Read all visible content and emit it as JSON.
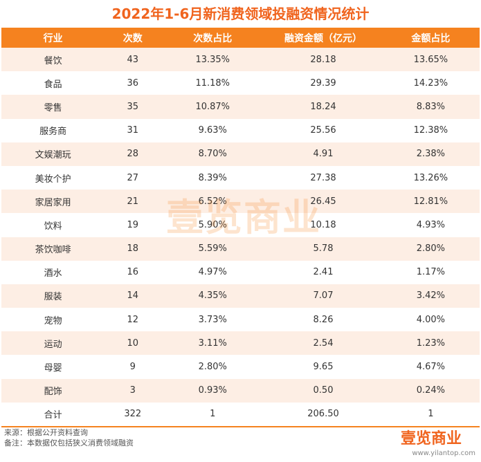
{
  "title": "2022年1-6月新消费领域投融资情况统计",
  "table": {
    "header": [
      "行业",
      "次数",
      "次数占比",
      "融资金额（亿元）",
      "金额占比"
    ],
    "rows": [
      [
        "餐饮",
        "43",
        "13.35%",
        "28.18",
        "13.65%"
      ],
      [
        "食品",
        "36",
        "11.18%",
        "29.39",
        "14.23%"
      ],
      [
        "零售",
        "35",
        "10.87%",
        "18.24",
        "8.83%"
      ],
      [
        "服务商",
        "31",
        "9.63%",
        "25.56",
        "12.38%"
      ],
      [
        "文娱潮玩",
        "28",
        "8.70%",
        "4.91",
        "2.38%"
      ],
      [
        "美妆个护",
        "27",
        "8.39%",
        "27.38",
        "13.26%"
      ],
      [
        "家居家用",
        "21",
        "6.52%",
        "26.45",
        "12.81%"
      ],
      [
        "饮料",
        "19",
        "5.90%",
        "10.18",
        "4.93%"
      ],
      [
        "茶饮咖啡",
        "18",
        "5.59%",
        "5.78",
        "2.80%"
      ],
      [
        "酒水",
        "16",
        "4.97%",
        "2.41",
        "1.17%"
      ],
      [
        "服装",
        "14",
        "4.35%",
        "7.07",
        "3.42%"
      ],
      [
        "宠物",
        "12",
        "3.73%",
        "8.26",
        "4.00%"
      ],
      [
        "运动",
        "10",
        "3.11%",
        "2.54",
        "1.23%"
      ],
      [
        "母婴",
        "9",
        "2.80%",
        "9.65",
        "4.67%"
      ],
      [
        "配饰",
        "3",
        "0.93%",
        "0.50",
        "0.24%"
      ],
      [
        "合计",
        "322",
        "1",
        "206.50",
        "1"
      ]
    ]
  },
  "watermark": "壹览商业",
  "notes": [
    "来源：根据公开资料查询",
    "备注：本数据仅包括狭义消费领域融资"
  ],
  "logo": "壹览商业",
  "url": "www.yilantop.com"
}
